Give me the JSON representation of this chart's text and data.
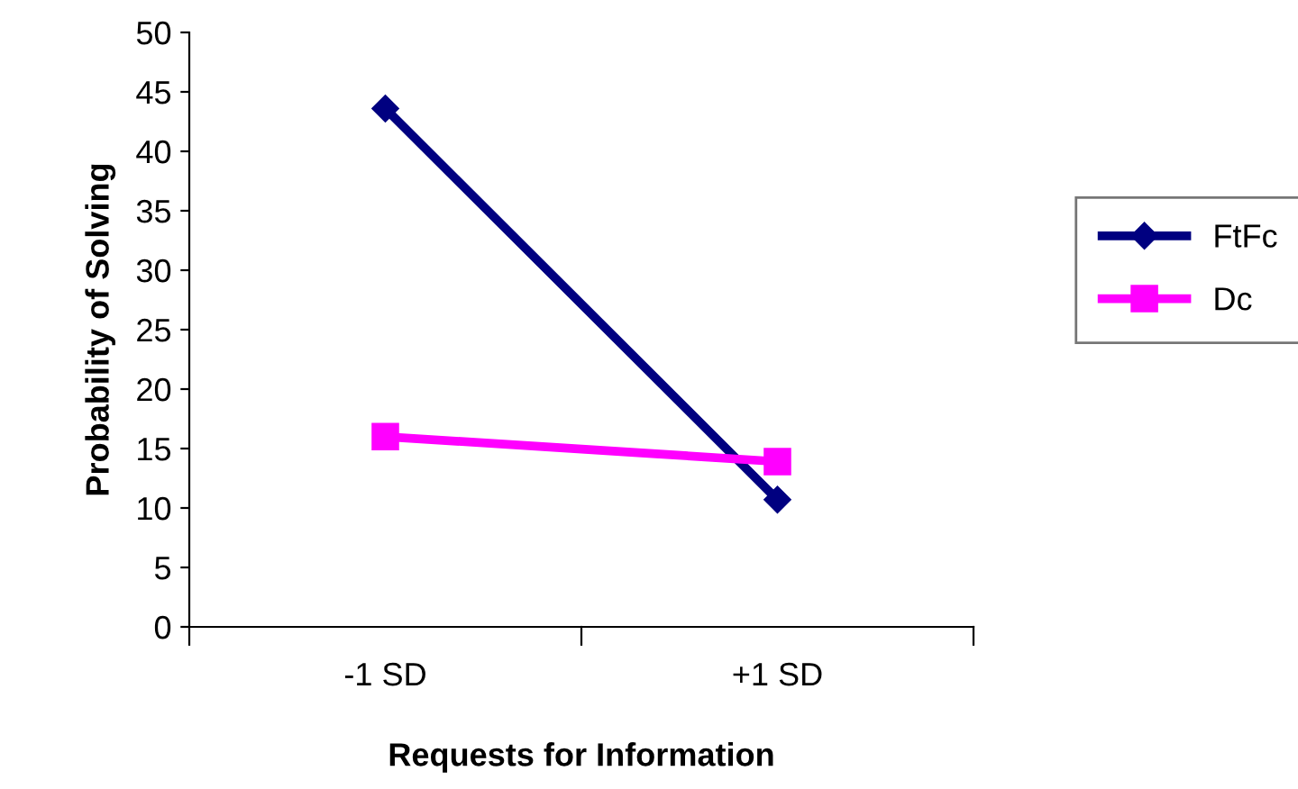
{
  "chart_data": {
    "type": "line",
    "xlabel": "Requests for Information",
    "ylabel": "Probability of Solving",
    "categories": [
      "-1 SD",
      "+1 SD"
    ],
    "series": [
      {
        "name": "FtFc",
        "color": "#000080",
        "marker": "diamond",
        "values": [
          43.6,
          10.7
        ]
      },
      {
        "name": "Dc",
        "color": "#ff00ff",
        "marker": "square",
        "values": [
          16.0,
          13.9
        ]
      }
    ],
    "ylim": [
      0,
      50
    ],
    "yticks": [
      0,
      5,
      10,
      15,
      20,
      25,
      30,
      35,
      40,
      45,
      50
    ],
    "grid": false,
    "legend": "right"
  }
}
